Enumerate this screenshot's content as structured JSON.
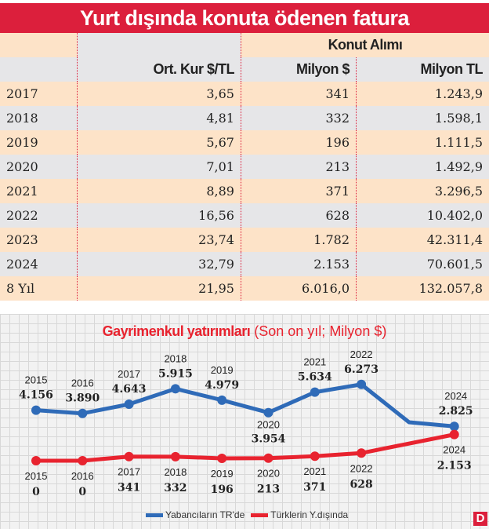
{
  "table": {
    "title": "Yurt dışında konuta ödenen fatura",
    "group_header": "Konut Alımı",
    "columns": [
      "",
      "Ort. Kur $/TL",
      "Milyon $",
      "Milyon TL"
    ],
    "rows": [
      [
        "2017",
        "3,65",
        "341",
        "1.243,9"
      ],
      [
        "2018",
        "4,81",
        "332",
        "1.598,1"
      ],
      [
        "2019",
        "5,67",
        "196",
        "1.111,5"
      ],
      [
        "2020",
        "7,01",
        "213",
        "1.492,9"
      ],
      [
        "2021",
        "8,89",
        "371",
        "3.296,5"
      ],
      [
        "2022",
        "16,56",
        "628",
        "10.402,0"
      ],
      [
        "2023",
        "23,74",
        "1.782",
        "42.311,4"
      ],
      [
        "2024",
        "32,79",
        "2.153",
        "70.601,5"
      ],
      [
        "8 Yıl",
        "21,95",
        "6.016,0",
        "132.057,8"
      ]
    ],
    "colors": {
      "header": "#dc1f3c",
      "row_a": "#fde3c8",
      "row_b": "#e6e6e8"
    }
  },
  "chart_data": {
    "type": "line",
    "title": "Gayrimenkul yatırımları",
    "subtitle": "(Son on yıl; Milyon $)",
    "x": [
      "2015",
      "2016",
      "2017",
      "2018",
      "2019",
      "2020",
      "2021",
      "2022",
      "2024"
    ],
    "series": [
      {
        "name": "Yabancıların TR'de",
        "color": "#2f6bb8",
        "values": [
          4156,
          3890,
          4643,
          5915,
          4979,
          3954,
          5634,
          6273,
          2825
        ],
        "labels": [
          "4.156",
          "3.890",
          "4.643",
          "5.915",
          "4.979",
          "3.954",
          "5.634",
          "6.273",
          "2.825"
        ]
      },
      {
        "name": "Türklerin Y.dışında",
        "color": "#e8232f",
        "values": [
          0,
          0,
          341,
          332,
          196,
          213,
          371,
          628,
          2153
        ],
        "labels": [
          "0",
          "0",
          "341",
          "332",
          "196",
          "213",
          "371",
          "628",
          "2.153"
        ]
      }
    ],
    "grid": true,
    "legend": "bottom-center"
  },
  "logo": "D"
}
